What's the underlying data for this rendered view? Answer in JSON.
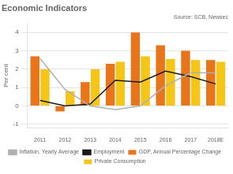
{
  "chart_data": {
    "type": "bar",
    "title": "Economic Indicators",
    "annotations": [
      "Source: SCB, Newsec"
    ],
    "ylabel": "Per cent",
    "categories": [
      "2011",
      "2012",
      "2013",
      "2014",
      "2015",
      "2016",
      "2017",
      "2018E"
    ],
    "series": [
      {
        "name": "GDP, Annual Percentage Change",
        "type": "bar",
        "color": "#E8751A",
        "values": [
          2.7,
          -0.3,
          1.3,
          2.3,
          4.0,
          3.3,
          3.0,
          2.5
        ]
      },
      {
        "name": "Private Consumption",
        "type": "bar",
        "color": "#F5C518",
        "values": [
          2.0,
          0.8,
          2.0,
          2.4,
          2.7,
          2.55,
          2.5,
          2.4
        ]
      },
      {
        "name": "Inflation, Yearly Average",
        "type": "line",
        "color": "#B0B0B0",
        "values": [
          2.6,
          0.9,
          0.0,
          -0.2,
          0.0,
          1.1,
          1.8,
          1.8
        ]
      },
      {
        "name": "Employment",
        "type": "line",
        "color": "#1A1A1A",
        "values": [
          0.3,
          0.0,
          0.1,
          1.4,
          1.3,
          1.9,
          1.6,
          1.2
        ]
      }
    ],
    "ylim": [
      -1.2,
      4.5
    ],
    "yticks": [
      -1,
      0,
      1,
      2,
      3,
      4
    ],
    "grid": true,
    "legend": "bottom"
  }
}
